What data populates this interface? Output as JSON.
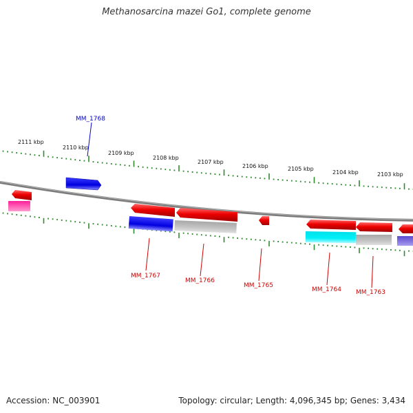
{
  "title": "Methanosarcina mazei Go1, complete genome",
  "footer": {
    "accession": "Accession: NC_003901",
    "summary": "Topology: circular; Length: 4,096,345 bp; Genes: 3,434"
  },
  "ruler": {
    "labels": [
      "2111 kbp",
      "2110 kbp",
      "2109 kbp",
      "2108 kbp",
      "2107 kbp",
      "2106 kbp",
      "2105 kbp",
      "2104 kbp",
      "2103 kbp"
    ]
  },
  "genes": {
    "top": [
      "MM_1768"
    ],
    "bottom": [
      "MM_1767",
      "MM_1766",
      "MM_1765",
      "MM_1764",
      "MM_1763"
    ]
  },
  "colors": {
    "tick": "#2e8b2e",
    "backbone": "#8a8a8a",
    "forward_gene": "#0000e0",
    "reverse_gene": "#ee0000",
    "top_label": "#0000cc",
    "bottom_label": "#cc0000",
    "cyan_feature": "#00e5ee",
    "gray_feature": "#b8b8b8",
    "magenta_feature": "#ff2aa0",
    "purple_feature": "#6a5acd"
  }
}
